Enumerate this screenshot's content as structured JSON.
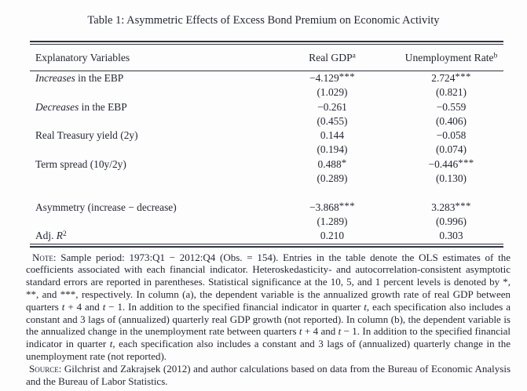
{
  "colors": {
    "text": "#252833",
    "background": "#fdfdfd",
    "rule": "#30343f"
  },
  "title": "Table 1: Asymmetric Effects of Excess Bond Premium on Economic Activity",
  "table": {
    "header": [
      [
        {
          "t": "Explanatory Variables"
        }
      ],
      [
        {
          "t": "Real GDP"
        },
        {
          "t": "a",
          "s": "sup"
        }
      ],
      [
        {
          "t": "Unemployment Rate"
        },
        {
          "t": "b",
          "s": "sup"
        }
      ]
    ],
    "rows": [
      [
        [
          {
            "t": "Increases",
            "s": "i"
          },
          {
            "t": " in the EBP"
          }
        ],
        [
          {
            "t": "−4.129"
          },
          {
            "t": "***",
            "s": "stars"
          }
        ],
        [
          {
            "t": "2.724"
          },
          {
            "t": "***",
            "s": "stars"
          }
        ]
      ],
      [
        [],
        [
          {
            "t": "(1.029)"
          }
        ],
        [
          {
            "t": "(0.821)"
          }
        ]
      ],
      [
        [
          {
            "t": "Decreases",
            "s": "i"
          },
          {
            "t": " in the EBP"
          }
        ],
        [
          {
            "t": "−0.261"
          }
        ],
        [
          {
            "t": "−0.559"
          }
        ]
      ],
      [
        [],
        [
          {
            "t": "(0.455)"
          }
        ],
        [
          {
            "t": "(0.406)"
          }
        ]
      ],
      [
        [
          {
            "t": "Real Treasury yield (2y)"
          }
        ],
        [
          {
            "t": "0.144"
          }
        ],
        [
          {
            "t": "−0.058"
          }
        ]
      ],
      [
        [],
        [
          {
            "t": "(0.194)"
          }
        ],
        [
          {
            "t": "(0.074)"
          }
        ]
      ],
      [
        [
          {
            "t": "Term spread (10y/2y)"
          }
        ],
        [
          {
            "t": "0.488"
          },
          {
            "t": "*",
            "s": "stars"
          }
        ],
        [
          {
            "t": "−0.446"
          },
          {
            "t": "***",
            "s": "stars"
          }
        ]
      ],
      [
        [],
        [
          {
            "t": "(0.289)"
          }
        ],
        [
          {
            "t": "(0.130)"
          }
        ]
      ],
      [
        [],
        [],
        []
      ],
      [
        [
          {
            "t": "Asymmetry (increase − decrease)"
          }
        ],
        [
          {
            "t": "−3.868"
          },
          {
            "t": "***",
            "s": "stars"
          }
        ],
        [
          {
            "t": "3.283"
          },
          {
            "t": "***",
            "s": "stars"
          }
        ]
      ],
      [
        [],
        [
          {
            "t": "(1.289)"
          }
        ],
        [
          {
            "t": "(0.996)"
          }
        ]
      ],
      [
        [
          {
            "t": "Adj. "
          },
          {
            "t": "R",
            "s": "i"
          },
          {
            "t": "2",
            "s": "sup"
          }
        ],
        [
          {
            "t": "0.210"
          }
        ],
        [
          {
            "t": "0.303"
          }
        ]
      ]
    ]
  },
  "notes": {
    "note_runs": [
      {
        "t": "Note:",
        "s": "sc"
      },
      {
        "t": " Sample period: 1973:Q1 − 2012:Q4 (Obs. = 154). Entries in the table denote the OLS estimates of the coefficients associated with each financial indicator. Heteroskedasticity- and autocorrelation-consistent asymptotic standard errors are reported in parentheses. Statistical significance at the 10, 5, and 1 percent levels is denoted by *, **, and ***, respectively. In column (a), the dependent variable is the annualized growth rate of real GDP between quarters "
      },
      {
        "t": "t",
        "s": "i"
      },
      {
        "t": " + 4 and "
      },
      {
        "t": "t",
        "s": "i"
      },
      {
        "t": " − 1. In addition to the specified financial indicator in quarter "
      },
      {
        "t": "t",
        "s": "i"
      },
      {
        "t": ", each specification also includes a constant and 3 lags of (annualized) quarterly real GDP growth (not reported). In column (b), the dependent variable is the annualized change in the unemployment rate between quarters "
      },
      {
        "t": "t",
        "s": "i"
      },
      {
        "t": " + 4 and "
      },
      {
        "t": "t",
        "s": "i"
      },
      {
        "t": " − 1. In addition to the specified financial indicator in quarter "
      },
      {
        "t": "t",
        "s": "i"
      },
      {
        "t": ", each specification also includes a constant and 3 lags of (annualized) quarterly change in the unemployment rate (not reported)."
      }
    ],
    "source_runs": [
      {
        "t": "Source:",
        "s": "sc"
      },
      {
        "t": " Gilchrist and Zakrajsek (2012) and author calculations based on data from the Bureau of Economic Analysis and the Bureau of Labor Statistics."
      }
    ]
  }
}
